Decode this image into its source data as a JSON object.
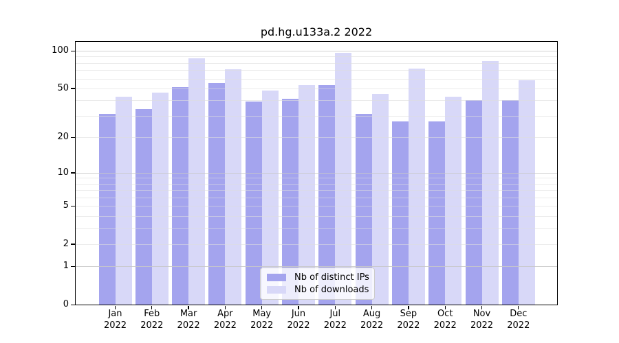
{
  "chart_data": {
    "type": "bar",
    "title": "pd.hg.u133a.2 2022",
    "year_label": "2022",
    "categories": [
      "Jan",
      "Feb",
      "Mar",
      "Apr",
      "May",
      "Jun",
      "Jul",
      "Aug",
      "Sep",
      "Oct",
      "Nov",
      "Dec"
    ],
    "series": [
      {
        "key": "distinct-ips",
        "name": "Nb of distinct IPs",
        "color": "#a4a4ee",
        "values": [
          31,
          34,
          51,
          55,
          39,
          41,
          53,
          31,
          27,
          27,
          40,
          40
        ]
      },
      {
        "key": "downloads",
        "name": "Nb of downloads",
        "color": "#d8d8f8",
        "values": [
          43,
          46,
          87,
          71,
          48,
          53,
          96,
          45,
          72,
          43,
          83,
          58
        ]
      }
    ],
    "yscale": "log1p",
    "ylim": [
      0,
      118
    ],
    "ytick_labels": [
      0,
      1,
      2,
      5,
      10,
      20,
      50,
      100
    ],
    "minor_gridlines": [
      2,
      3,
      4,
      5,
      6,
      7,
      8,
      9,
      20,
      30,
      40,
      50,
      60,
      70,
      80,
      90
    ],
    "major_gridlines": [
      1,
      10,
      100
    ],
    "grid": "on",
    "legend_position": "lower center",
    "colors": {
      "spine": "#000000",
      "minor_grid": "#e9e9e9",
      "major_grid": "#d2d2d2",
      "legend_border": "#cccccc",
      "legend_background": "rgba(255,255,255,0.8)"
    }
  }
}
